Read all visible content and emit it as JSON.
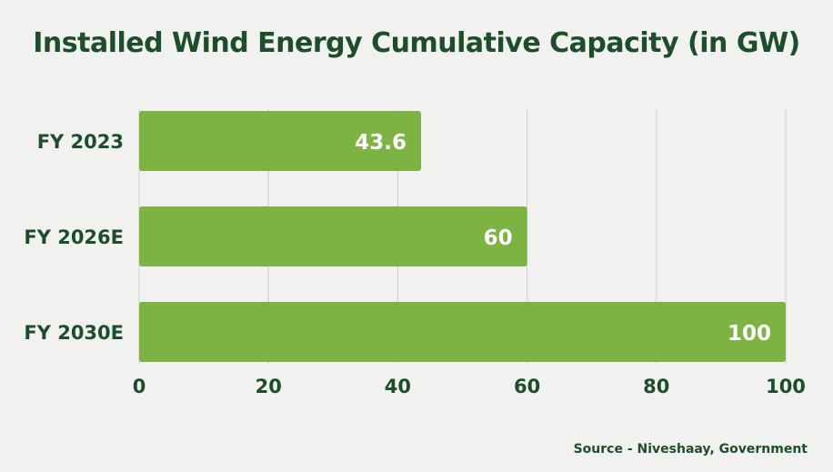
{
  "title": "Installed Wind Energy Cumulative Capacity (in GW)",
  "source": "Source - Niveshaay, Government",
  "colors": {
    "bar": "#7cb342",
    "text": "#1e4d2b",
    "grid": "#cfcfcf",
    "background": "#f1f1ef",
    "bar_label": "#ffffff"
  },
  "chart_data": {
    "type": "bar",
    "orientation": "horizontal",
    "categories": [
      "FY 2023",
      "FY 2026E",
      "FY 2030E"
    ],
    "values": [
      43.6,
      60,
      100
    ],
    "value_labels": [
      "43.6",
      "60",
      "100"
    ],
    "xlim": [
      0,
      100
    ],
    "xticks": [
      "0",
      "20",
      "40",
      "60",
      "80",
      "100"
    ],
    "xtick_values": [
      0,
      20,
      40,
      60,
      80,
      100
    ],
    "grid": true,
    "legend": "none"
  }
}
